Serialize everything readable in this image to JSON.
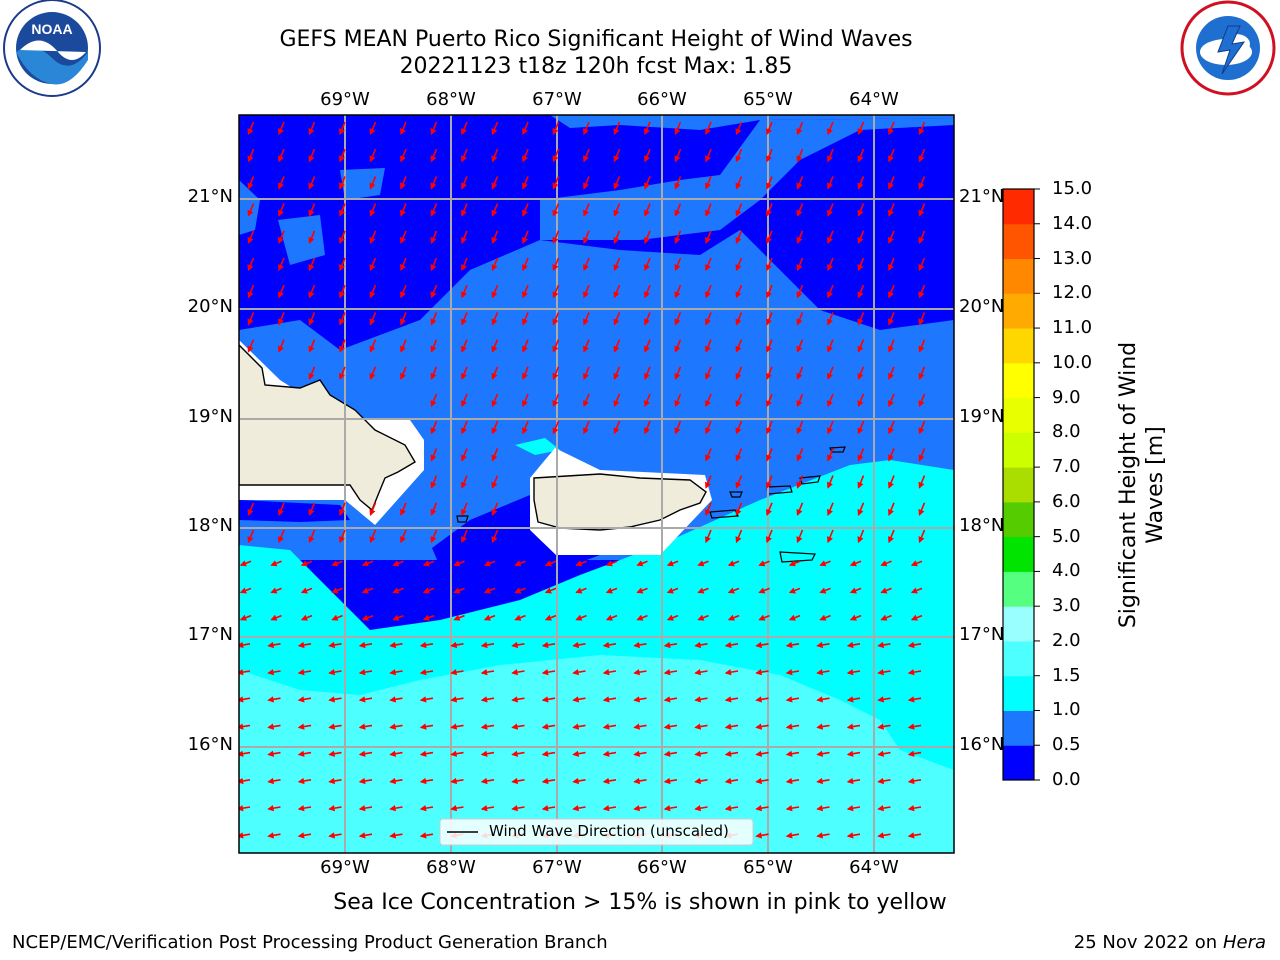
{
  "title_line1": "GEFS MEAN Puerto Rico Significant Height of Wind Waves",
  "title_line2": "20221123 t18z 120h fcst   Max: 1.85",
  "lon_labels": [
    "69°W",
    "68°W",
    "67°W",
    "66°W",
    "65°W",
    "64°W"
  ],
  "lat_labels": [
    "21°N",
    "20°N",
    "19°N",
    "18°N",
    "17°N",
    "16°N"
  ],
  "colorbar": {
    "title": "Significant Height of Wind Waves [m]",
    "title_line1": "Significant Height of Wind",
    "title_line2": "Waves [m]",
    "ticks": [
      "15.0",
      "14.0",
      "13.0",
      "12.0",
      "11.0",
      "10.0",
      "9.0",
      "8.0",
      "7.0",
      "6.0",
      "5.0",
      "4.0",
      "3.0",
      "2.0",
      "1.5",
      "1.0",
      "0.5",
      "0.0"
    ],
    "colors": [
      "#0000ff",
      "#1e78ff",
      "#00ffff",
      "#4dffff",
      "#99ffff",
      "#55ff7f",
      "#00e400",
      "#55cc00",
      "#aadd00",
      "#ccff00",
      "#e8ff00",
      "#ffff00",
      "#ffd700",
      "#ffaa00",
      "#ff8800",
      "#ff5500",
      "#ff2a00",
      "#ff0000"
    ]
  },
  "legend_label": "Wind Wave Direction (unscaled)",
  "caption": "Sea Ice Concentration > 15% is shown in pink to yellow",
  "footer_left": "NCEP/EMC/Verification Post Processing Product Generation Branch",
  "footer_right_date": "25 Nov 2022 on",
  "footer_right_host": "Hera",
  "logos": {
    "noaa_text": "NOAA",
    "noaa_ring": "NATIONAL OCEANIC AND ATMOSPHERIC ADMINISTRATION · U.S. DEPARTMENT OF COMMERCE",
    "nws_ring": "NATIONAL WEATHER SERVICE"
  }
}
